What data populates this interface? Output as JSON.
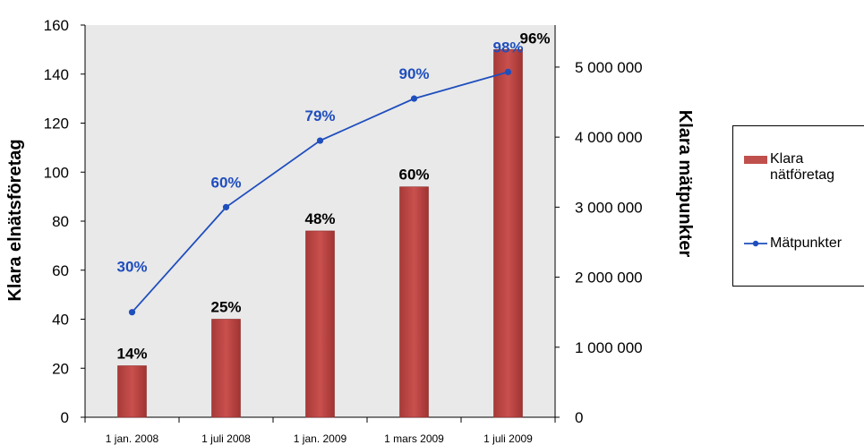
{
  "chart_data": {
    "type": "bar",
    "categories": [
      "1 jan. 2008",
      "1 juli 2008",
      "1 jan. 2009",
      "1 mars 2009",
      "1 juli 2009"
    ],
    "ylabel": "Klara elnätsföretag",
    "y2label": "Klara mätpunkter",
    "ylim": [
      0,
      160
    ],
    "y2lim": [
      0,
      5600000
    ],
    "yticks": [
      "0",
      "20",
      "40",
      "60",
      "80",
      "100",
      "120",
      "140",
      "160"
    ],
    "y2ticks": [
      "0",
      "1 000 000",
      "2 000 000",
      "3 000 000",
      "4 000 000",
      "5 000 000"
    ],
    "grid": false,
    "legend_position": "right",
    "series": [
      {
        "name": "Klara nätföretag",
        "type": "bar",
        "axis": "left",
        "color": "#C0504D",
        "values": [
          21,
          40,
          76,
          94,
          150
        ],
        "labels": [
          "14%",
          "25%",
          "48%",
          "60%",
          "96%"
        ]
      },
      {
        "name": "Mätpunkter",
        "type": "line",
        "axis": "right",
        "color": "#1F4EBD",
        "values": [
          1500000,
          3000000,
          3950000,
          4550000,
          4930000
        ],
        "labels": [
          "30%",
          "60%",
          "79%",
          "90%",
          "98%"
        ]
      }
    ]
  }
}
